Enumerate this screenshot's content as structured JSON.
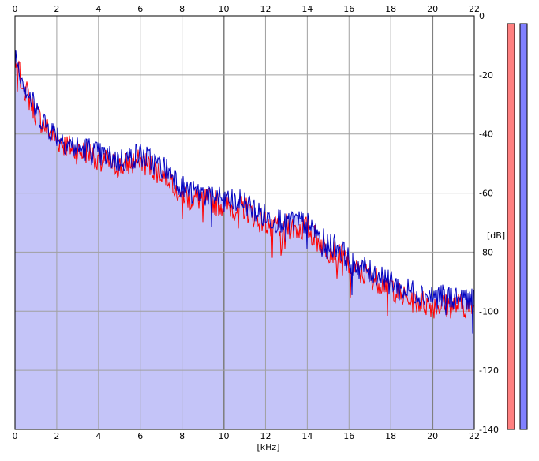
{
  "chart_data": {
    "type": "area",
    "x_unit_label": "[kHz]",
    "y_unit_label": "[dB]",
    "xlim": [
      0,
      22
    ],
    "ylim": [
      -140,
      0
    ],
    "x_ticks": [
      "0",
      "2",
      "4",
      "6",
      "8",
      "10",
      "12",
      "14",
      "16",
      "18",
      "20",
      "22"
    ],
    "y_ticks": [
      "0",
      "-20",
      "-40",
      "-60",
      "-80",
      "-100",
      "-120",
      "-140"
    ],
    "grid": true,
    "colors": {
      "fill": "#c4c4f8",
      "series_red": "#ff0000",
      "series_blue": "#0000c0",
      "grid": "#a0a0a0",
      "grid_major": "#808080",
      "meter_left": "#ff8080",
      "meter_right": "#8080ff"
    },
    "series": [
      {
        "color": "#ff0000",
        "x": [
          0,
          0.5,
          1,
          1.5,
          2,
          2.5,
          3,
          3.5,
          4,
          4.5,
          5,
          5.5,
          6,
          6.5,
          7,
          7.5,
          8,
          8.5,
          9,
          9.5,
          10,
          10.5,
          11,
          11.5,
          12,
          12.5,
          13,
          13.5,
          14,
          14.5,
          15,
          15.5,
          16,
          16.5,
          17,
          17.5,
          18,
          18.5,
          19,
          19.5,
          20,
          20.5,
          21,
          21.5,
          22
        ],
        "values": [
          -15,
          -25,
          -33,
          -38,
          -42,
          -44,
          -46,
          -46,
          -48,
          -50,
          -51,
          -50,
          -49,
          -51,
          -53,
          -55,
          -60,
          -62,
          -62,
          -63,
          -64,
          -65,
          -65,
          -68,
          -70,
          -71,
          -71,
          -72,
          -72,
          -76,
          -79,
          -80,
          -84,
          -87,
          -88,
          -90,
          -91,
          -95,
          -96,
          -97,
          -98,
          -98,
          -98,
          -98,
          -99
        ]
      },
      {
        "color": "#0000c0",
        "x": [
          0,
          0.5,
          1,
          1.5,
          2,
          2.5,
          3,
          3.5,
          4,
          4.5,
          5,
          5.5,
          6,
          6.5,
          7,
          7.5,
          8,
          8.5,
          9,
          9.5,
          10,
          10.5,
          11,
          11.5,
          12,
          12.5,
          13,
          13.5,
          14,
          14.5,
          15,
          15.5,
          16,
          16.5,
          17,
          17.5,
          18,
          18.5,
          19,
          19.5,
          20,
          20.5,
          21,
          21.5,
          22
        ],
        "values": [
          -13,
          -24,
          -32,
          -37,
          -40,
          -43,
          -45,
          -45,
          -47,
          -48,
          -49,
          -48,
          -47,
          -49,
          -51,
          -53,
          -58,
          -60,
          -60,
          -61,
          -62,
          -63,
          -63,
          -66,
          -68,
          -69,
          -69,
          -70,
          -70,
          -74,
          -77,
          -78,
          -83,
          -85,
          -86,
          -88,
          -89,
          -93,
          -93,
          -94,
          -95,
          -95,
          -95,
          -95,
          -96
        ]
      }
    ]
  },
  "meters": [
    {
      "color": "#ff8080",
      "level": 1.0
    },
    {
      "color": "#8080ff",
      "level": 1.0
    }
  ]
}
